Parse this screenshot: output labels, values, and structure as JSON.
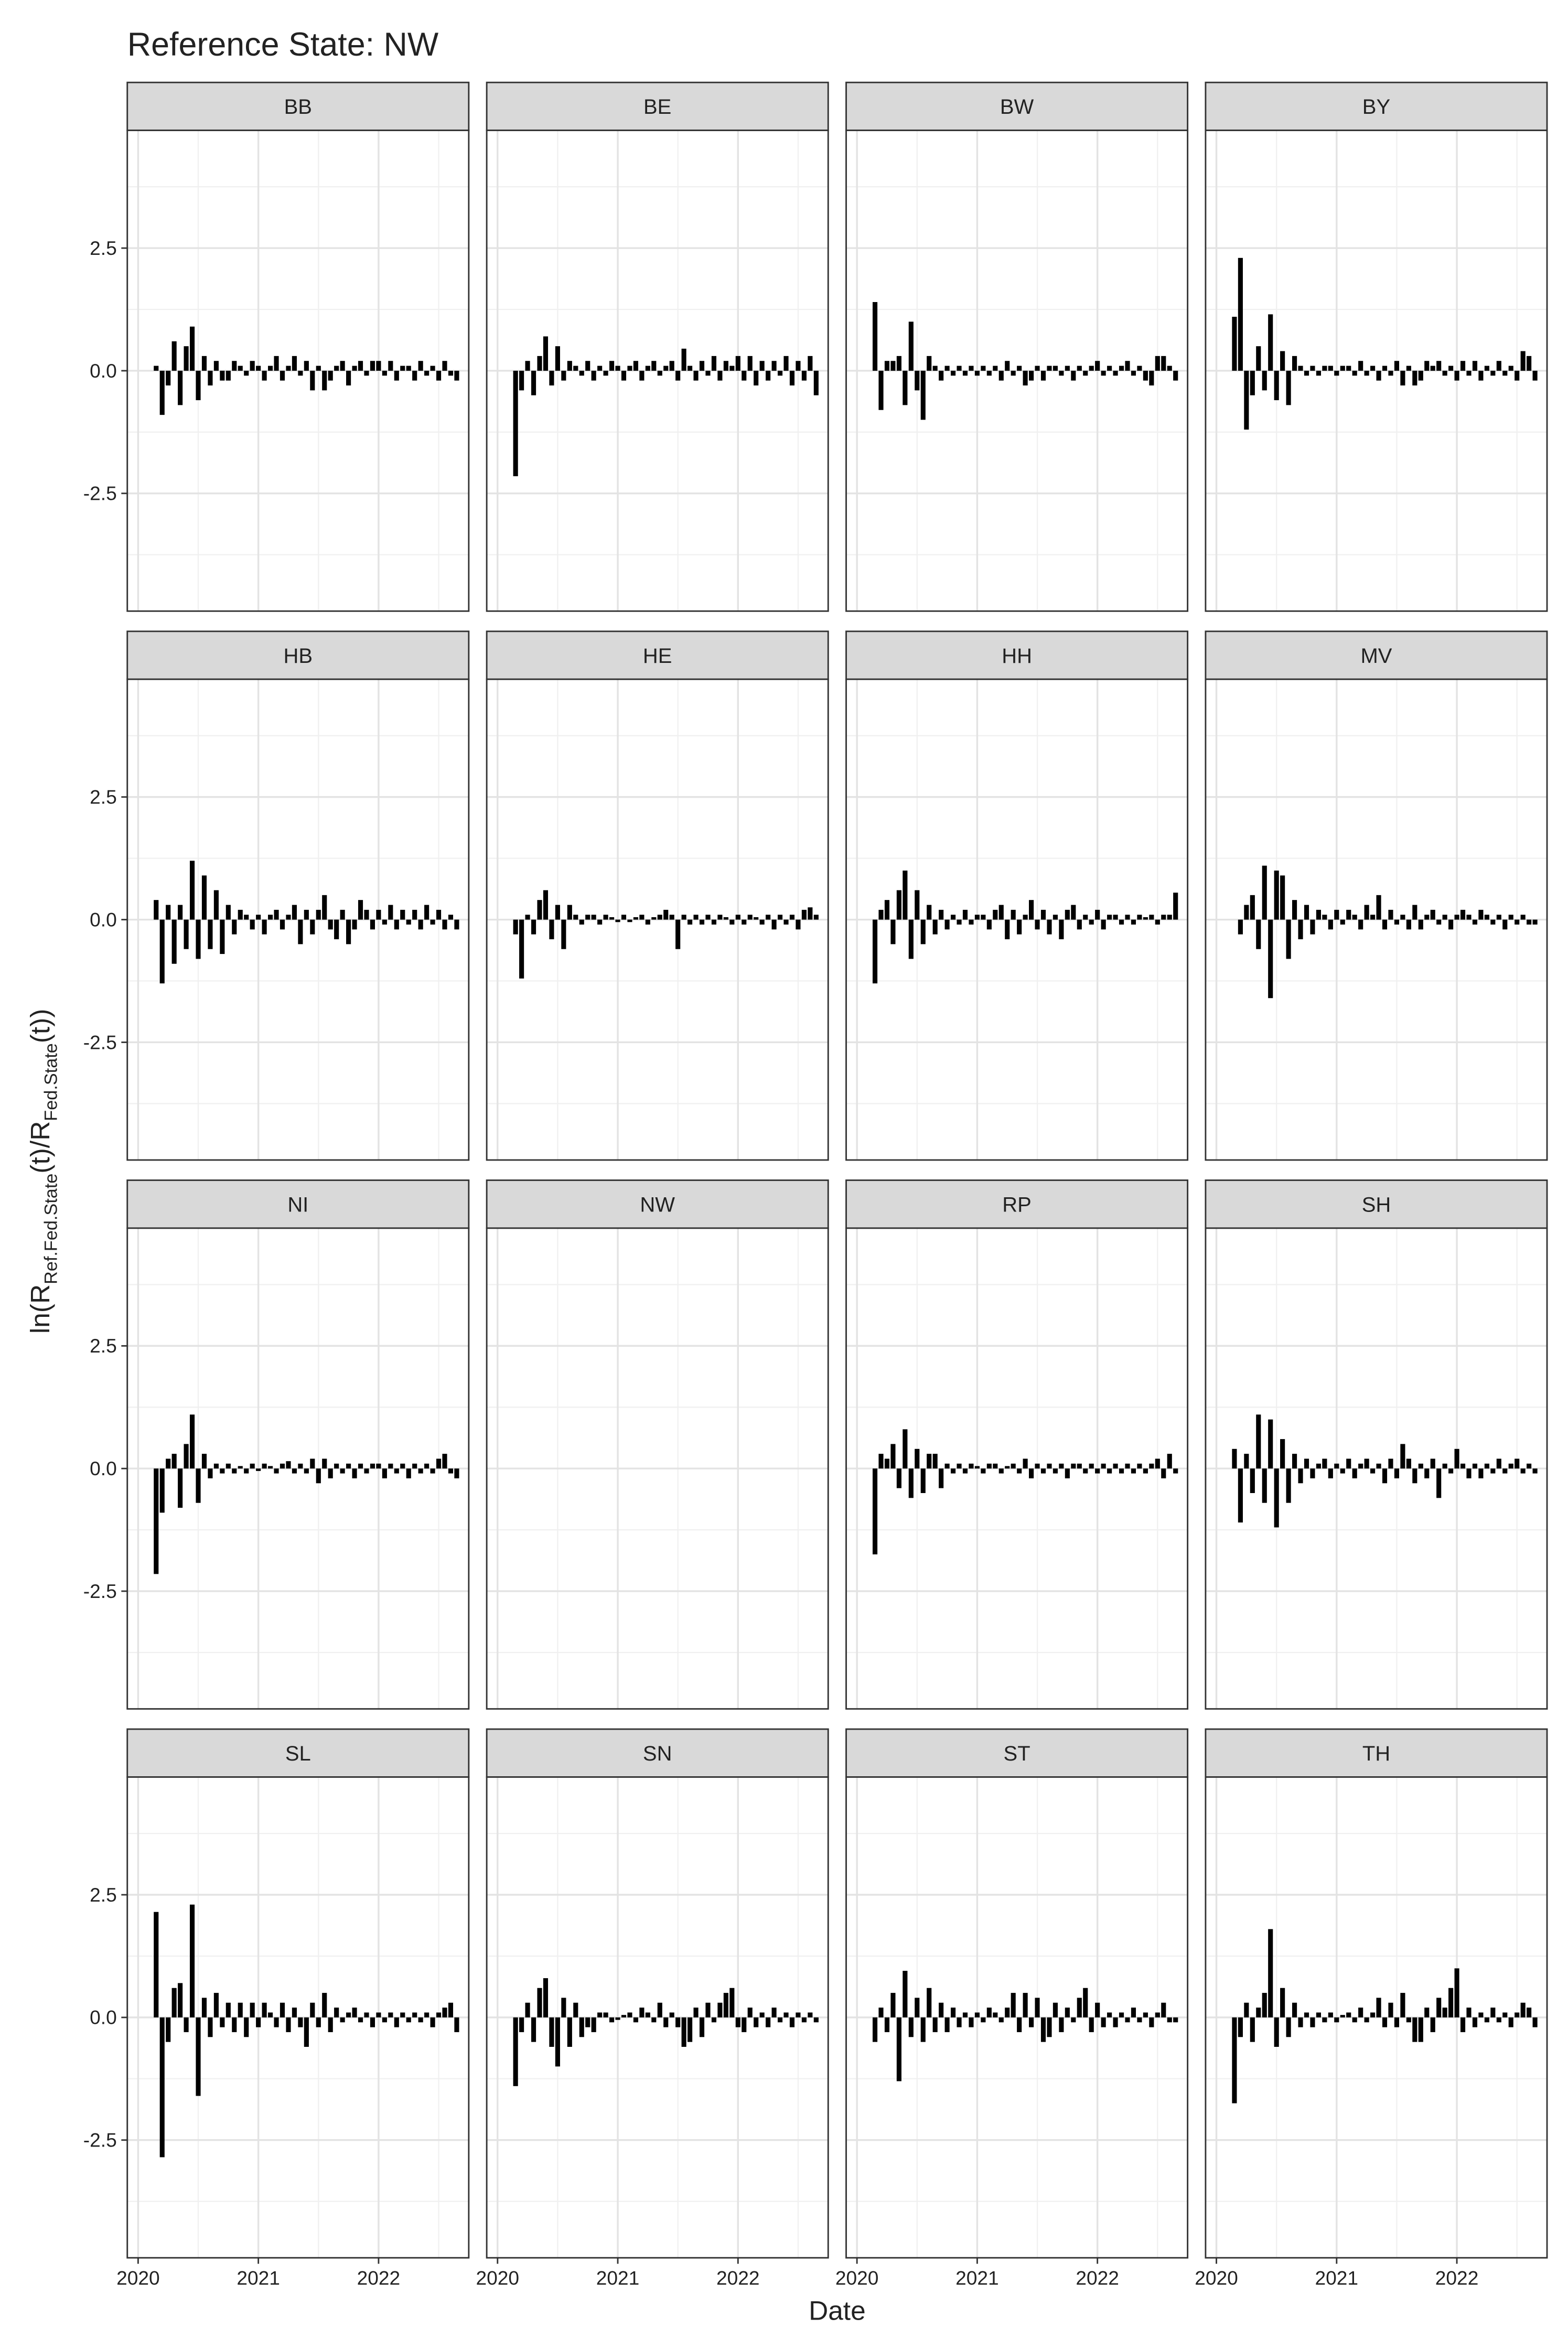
{
  "chart_data": {
    "type": "bar",
    "title": "Reference State:  NW",
    "xlabel": "Date",
    "ylabel_parts": [
      "ln(R",
      "Ref.Fed.State",
      "(t)/R",
      "Fed.State",
      "(t))"
    ],
    "color": "#000000",
    "grid": true,
    "xlim": [
      2019.91,
      2022.75
    ],
    "xticks": [
      2020,
      2021,
      2022
    ],
    "xminor": [
      2020.5,
      2021.5,
      2022.5
    ],
    "ylim": [
      -4.9,
      4.9
    ],
    "yticks": [
      -2.5,
      {
        "value": 0,
        "label": "0.0"
      },
      2.5
    ],
    "yminor": [
      -3.75,
      -1.25,
      1.25,
      3.75
    ],
    "x": [
      2020.15,
      2020.2,
      2020.25,
      2020.3,
      2020.35,
      2020.4,
      2020.45,
      2020.5,
      2020.55,
      2020.6,
      2020.65,
      2020.7,
      2020.75,
      2020.8,
      2020.85,
      2020.9,
      2020.95,
      2021.0,
      2021.05,
      2021.1,
      2021.15,
      2021.2,
      2021.25,
      2021.3,
      2021.35,
      2021.4,
      2021.45,
      2021.5,
      2021.55,
      2021.6,
      2021.65,
      2021.7,
      2021.75,
      2021.8,
      2021.85,
      2021.9,
      2021.95,
      2022.0,
      2022.05,
      2022.1,
      2022.15,
      2022.2,
      2022.25,
      2022.3,
      2022.35,
      2022.4,
      2022.45,
      2022.5,
      2022.55,
      2022.6,
      2022.65
    ],
    "panels": [
      {
        "name": "BB",
        "values": [
          0.1,
          -0.9,
          -0.3,
          0.6,
          -0.7,
          0.5,
          0.9,
          -0.6,
          0.3,
          -0.3,
          0.2,
          -0.2,
          -0.2,
          0.2,
          0.1,
          -0.1,
          0.2,
          0.1,
          -0.2,
          0.1,
          0.3,
          -0.2,
          0.1,
          0.3,
          -0.1,
          0.2,
          -0.4,
          0.1,
          -0.4,
          -0.2,
          0.1,
          0.2,
          -0.3,
          0.1,
          0.2,
          -0.1,
          0.2,
          0.2,
          -0.1,
          0.2,
          -0.2,
          0.1,
          0.1,
          -0.2,
          0.2,
          -0.1,
          0.1,
          -0.2,
          0.2,
          -0.1,
          -0.2
        ]
      },
      {
        "name": "BE",
        "values": [
          -2.15,
          -0.4,
          0.2,
          -0.5,
          0.3,
          0.7,
          -0.3,
          0.5,
          -0.2,
          0.2,
          0.1,
          -0.1,
          0.2,
          -0.2,
          0.1,
          -0.1,
          0.2,
          0.1,
          -0.2,
          0.1,
          0.2,
          -0.2,
          0.1,
          0.2,
          -0.1,
          0.1,
          0.2,
          -0.2,
          0.45,
          0.1,
          -0.2,
          0.2,
          -0.1,
          0.3,
          -0.2,
          0.2,
          0.1,
          0.3,
          -0.2,
          0.3,
          -0.3,
          0.2,
          -0.2,
          0.2,
          -0.1,
          0.3,
          -0.3,
          0.2,
          -0.2,
          0.3,
          -0.5
        ]
      },
      {
        "name": "BW",
        "values": [
          1.4,
          -0.8,
          0.2,
          0.2,
          0.3,
          -0.7,
          1.0,
          -0.4,
          -1.0,
          0.3,
          0.1,
          -0.2,
          0.1,
          -0.1,
          0.1,
          -0.1,
          0.1,
          -0.1,
          0.1,
          -0.1,
          0.1,
          -0.2,
          0.2,
          -0.1,
          0.1,
          -0.3,
          -0.2,
          0.1,
          -0.2,
          0.1,
          0.1,
          -0.1,
          0.1,
          -0.2,
          0.1,
          -0.1,
          0.1,
          0.2,
          -0.1,
          0.1,
          -0.1,
          0.1,
          0.2,
          -0.1,
          0.1,
          -0.2,
          -0.3,
          0.3,
          0.3,
          0.1,
          -0.2
        ]
      },
      {
        "name": "BY",
        "values": [
          1.1,
          2.3,
          -1.2,
          -0.5,
          0.5,
          -0.4,
          1.15,
          -0.6,
          0.4,
          -0.7,
          0.3,
          0.1,
          -0.1,
          0.1,
          -0.1,
          0.1,
          0.1,
          -0.1,
          0.1,
          0.1,
          -0.1,
          0.2,
          -0.1,
          0.1,
          -0.2,
          0.1,
          -0.1,
          0.2,
          -0.3,
          0.1,
          -0.3,
          -0.2,
          0.2,
          0.1,
          0.2,
          -0.1,
          0.1,
          -0.2,
          0.2,
          -0.1,
          0.2,
          -0.2,
          0.1,
          -0.1,
          0.2,
          -0.1,
          0.1,
          -0.2,
          0.4,
          0.3,
          -0.2
        ]
      },
      {
        "name": "HB",
        "values": [
          0.4,
          -1.3,
          0.3,
          -0.9,
          0.3,
          -0.6,
          1.2,
          -0.8,
          0.9,
          -0.6,
          0.6,
          -0.7,
          0.3,
          -0.3,
          0.2,
          0.1,
          -0.2,
          0.1,
          -0.3,
          0.1,
          0.2,
          -0.2,
          0.1,
          0.3,
          -0.5,
          0.2,
          -0.3,
          0.2,
          0.5,
          -0.2,
          -0.4,
          0.2,
          -0.5,
          -0.2,
          0.4,
          0.2,
          -0.2,
          0.2,
          -0.1,
          0.3,
          -0.2,
          0.2,
          -0.1,
          0.2,
          -0.2,
          0.3,
          -0.1,
          0.2,
          -0.2,
          0.1,
          -0.2
        ]
      },
      {
        "name": "HE",
        "values": [
          -0.3,
          -1.2,
          0.1,
          -0.3,
          0.4,
          0.6,
          -0.4,
          0.3,
          -0.6,
          0.3,
          0.1,
          -0.1,
          0.1,
          0.1,
          -0.1,
          0.1,
          0.05,
          -0.05,
          0.1,
          -0.05,
          0.05,
          0.1,
          -0.1,
          0.05,
          0.1,
          0.2,
          0.1,
          -0.6,
          0.1,
          -0.1,
          0.1,
          -0.1,
          0.1,
          -0.1,
          0.1,
          0.05,
          -0.1,
          0.1,
          -0.1,
          0.1,
          0.05,
          -0.1,
          0.1,
          -0.2,
          0.1,
          -0.1,
          0.1,
          -0.2,
          0.2,
          0.25,
          0.1
        ]
      },
      {
        "name": "HH",
        "values": [
          -1.3,
          0.2,
          0.4,
          -0.5,
          0.6,
          1.0,
          -0.8,
          0.6,
          -0.5,
          0.3,
          -0.3,
          0.2,
          -0.2,
          0.1,
          -0.1,
          0.2,
          -0.1,
          0.1,
          0.1,
          -0.2,
          0.2,
          0.3,
          -0.4,
          0.2,
          -0.3,
          0.1,
          0.4,
          -0.2,
          0.2,
          -0.3,
          0.1,
          -0.4,
          0.2,
          0.3,
          -0.2,
          0.1,
          -0.1,
          0.2,
          -0.2,
          0.1,
          0.1,
          -0.1,
          0.1,
          -0.1,
          0.1,
          0.05,
          0.1,
          -0.1,
          0.1,
          0.1,
          0.55
        ]
      },
      {
        "name": "MV",
        "values": [
          null,
          -0.3,
          0.3,
          0.5,
          -0.6,
          1.1,
          -1.6,
          1.0,
          0.9,
          -0.8,
          0.4,
          -0.4,
          0.3,
          -0.3,
          0.2,
          0.1,
          -0.2,
          0.2,
          -0.1,
          0.2,
          0.1,
          -0.2,
          0.3,
          0.1,
          0.5,
          -0.2,
          0.2,
          -0.1,
          0.1,
          -0.2,
          0.3,
          -0.2,
          0.1,
          0.2,
          -0.1,
          0.1,
          -0.2,
          0.1,
          0.2,
          0.1,
          -0.1,
          0.2,
          0.1,
          -0.1,
          0.1,
          -0.2,
          0.1,
          -0.1,
          0.1,
          -0.1,
          -0.1
        ]
      },
      {
        "name": "NI",
        "values": [
          -2.15,
          -0.9,
          0.2,
          0.3,
          -0.8,
          0.5,
          1.1,
          -0.7,
          0.3,
          -0.2,
          0.1,
          -0.1,
          0.1,
          -0.1,
          0.05,
          -0.1,
          0.1,
          -0.05,
          0.1,
          0.05,
          -0.1,
          0.1,
          0.15,
          -0.1,
          0.1,
          -0.1,
          0.2,
          -0.3,
          0.2,
          -0.2,
          0.1,
          -0.1,
          0.1,
          -0.2,
          0.1,
          -0.1,
          0.1,
          0.1,
          -0.2,
          0.1,
          -0.1,
          0.1,
          -0.2,
          0.1,
          -0.1,
          0.1,
          -0.1,
          0.2,
          0.3,
          -0.1,
          -0.2
        ]
      },
      {
        "name": "NW",
        "values": []
      },
      {
        "name": "RP",
        "values": [
          -1.75,
          0.3,
          0.2,
          0.5,
          -0.4,
          0.8,
          -0.6,
          0.4,
          -0.5,
          0.3,
          0.3,
          -0.4,
          0.1,
          -0.1,
          0.1,
          -0.1,
          0.1,
          0.05,
          -0.1,
          0.1,
          0.1,
          -0.1,
          0.05,
          0.1,
          -0.1,
          0.2,
          -0.2,
          0.1,
          -0.1,
          0.1,
          -0.1,
          0.1,
          -0.2,
          0.1,
          0.1,
          -0.1,
          0.1,
          -0.1,
          0.1,
          -0.1,
          0.1,
          -0.1,
          0.1,
          -0.1,
          0.1,
          -0.1,
          0.1,
          0.2,
          -0.2,
          0.3,
          -0.1
        ]
      },
      {
        "name": "SH",
        "values": [
          0.4,
          -1.1,
          0.3,
          -0.5,
          1.1,
          -0.7,
          1.0,
          -1.2,
          0.6,
          -0.7,
          0.3,
          -0.3,
          0.2,
          -0.2,
          0.1,
          0.2,
          -0.2,
          0.1,
          -0.1,
          0.2,
          -0.2,
          0.1,
          0.2,
          -0.1,
          0.1,
          -0.3,
          0.2,
          -0.2,
          0.5,
          0.2,
          -0.3,
          0.1,
          -0.2,
          0.2,
          -0.6,
          0.1,
          -0.1,
          0.4,
          0.1,
          -0.2,
          0.1,
          -0.2,
          0.1,
          -0.1,
          0.2,
          -0.1,
          0.1,
          0.2,
          -0.1,
          0.1,
          -0.1
        ]
      },
      {
        "name": "SL",
        "values": [
          2.15,
          -2.85,
          -0.5,
          0.6,
          0.7,
          -0.3,
          2.3,
          -1.6,
          0.4,
          -0.4,
          0.5,
          -0.2,
          0.3,
          -0.3,
          0.3,
          -0.4,
          0.3,
          -0.2,
          0.3,
          0.1,
          -0.2,
          0.3,
          -0.3,
          0.2,
          -0.2,
          -0.6,
          0.3,
          -0.2,
          0.5,
          -0.3,
          0.2,
          -0.1,
          0.1,
          0.2,
          -0.1,
          0.1,
          -0.2,
          0.1,
          -0.1,
          0.1,
          -0.2,
          0.1,
          -0.1,
          0.1,
          -0.1,
          0.1,
          -0.2,
          0.1,
          0.2,
          0.3,
          -0.3
        ]
      },
      {
        "name": "SN",
        "values": [
          -1.4,
          -0.3,
          0.3,
          -0.5,
          0.6,
          0.8,
          -0.6,
          -1.0,
          0.4,
          -0.6,
          0.3,
          -0.4,
          -0.2,
          -0.3,
          0.1,
          0.1,
          -0.1,
          -0.05,
          0.05,
          0.1,
          -0.1,
          0.2,
          0.1,
          -0.1,
          0.3,
          -0.2,
          0.1,
          -0.2,
          -0.6,
          -0.5,
          0.2,
          -0.4,
          0.3,
          -0.1,
          0.3,
          0.5,
          0.6,
          -0.2,
          -0.3,
          0.2,
          -0.2,
          0.1,
          -0.2,
          0.2,
          -0.1,
          0.1,
          -0.2,
          0.1,
          -0.1,
          0.1,
          -0.1
        ]
      },
      {
        "name": "ST",
        "values": [
          -0.5,
          0.2,
          -0.3,
          0.5,
          -1.3,
          0.95,
          -0.4,
          0.4,
          -0.5,
          0.6,
          -0.3,
          0.3,
          -0.3,
          0.2,
          -0.2,
          0.1,
          -0.2,
          0.1,
          -0.1,
          0.2,
          0.1,
          -0.1,
          0.2,
          0.5,
          -0.3,
          0.5,
          -0.2,
          0.4,
          -0.5,
          -0.4,
          0.3,
          -0.3,
          0.2,
          -0.1,
          0.4,
          0.6,
          -0.3,
          0.3,
          -0.2,
          0.1,
          -0.2,
          0.1,
          -0.1,
          0.2,
          -0.1,
          0.1,
          -0.2,
          0.1,
          0.3,
          -0.1,
          -0.1
        ]
      },
      {
        "name": "TH",
        "values": [
          -1.75,
          -0.4,
          0.3,
          -0.5,
          0.2,
          0.5,
          1.8,
          -0.6,
          0.6,
          -0.4,
          0.3,
          -0.2,
          0.1,
          -0.2,
          0.1,
          -0.1,
          0.1,
          -0.1,
          0.05,
          0.1,
          -0.1,
          0.2,
          -0.1,
          0.1,
          0.4,
          -0.2,
          0.3,
          -0.2,
          0.5,
          -0.1,
          -0.5,
          -0.5,
          0.2,
          -0.3,
          0.4,
          0.2,
          0.6,
          1.0,
          -0.3,
          0.2,
          -0.2,
          0.1,
          -0.1,
          0.2,
          -0.1,
          0.1,
          -0.2,
          0.1,
          0.3,
          0.2,
          -0.2
        ]
      }
    ]
  }
}
